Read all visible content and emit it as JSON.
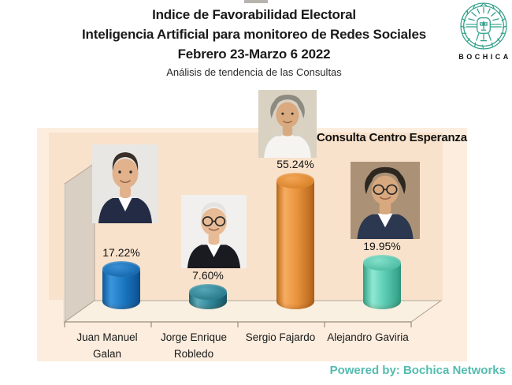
{
  "header": {
    "title_line1": "Indice de Favorabilidad Electoral",
    "title_line2": "Inteligencia Artificial para monitoreo de Redes Sociales",
    "title_line3": "Febrero 23-Marzo 6 2022",
    "subtitle": "Análisis de tendencia de las Consultas"
  },
  "logo": {
    "brand": "BOCHICA",
    "accent_color": "#2fa089"
  },
  "footer": {
    "text": "Powered by: Bochica Networks",
    "color": "#53bcae"
  },
  "chart_data": {
    "type": "bar",
    "style": "3d-cylinder",
    "title": "Consulta Centro Esperanza",
    "categories": [
      "Juan Manuel Galan",
      "Jorge Enrique Robledo",
      "Sergio Fajardo",
      "Alejandro Gaviria"
    ],
    "values": [
      17.22,
      7.6,
      55.24,
      19.95
    ],
    "value_labels": [
      "17.22%",
      "7.60%",
      "55.24%",
      "19.95%"
    ],
    "unit": "percent",
    "bar_colors": [
      "#1b76c0",
      "#2e8496",
      "#e8923c",
      "#5fceb6"
    ],
    "xlabel": "",
    "ylabel": "",
    "ylim": [
      0,
      60
    ],
    "grid": false,
    "legend": false,
    "candidate_photos": true
  }
}
